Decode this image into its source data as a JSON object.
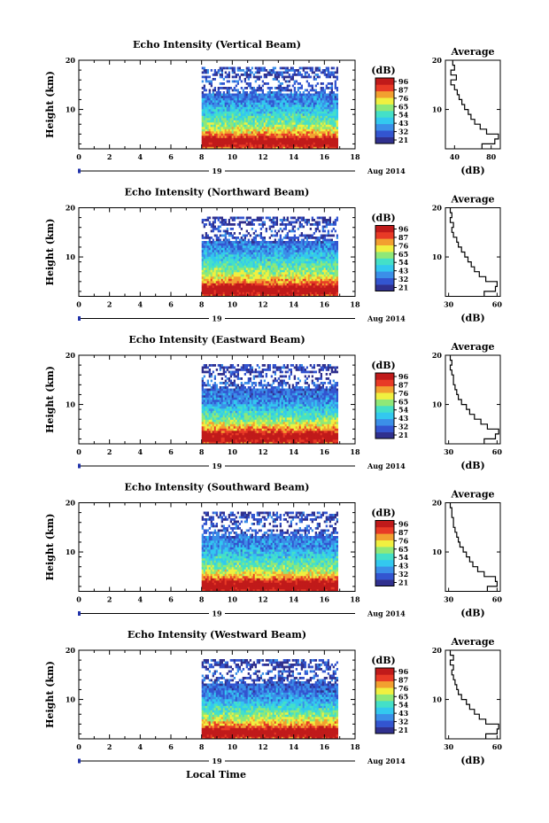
{
  "figure": {
    "xlabel": "Local Time"
  },
  "colorbar": {
    "unit": "(dB)",
    "ticks": [
      "96",
      "87",
      "76",
      "65",
      "54",
      "43",
      "32",
      "21"
    ],
    "range": [
      21,
      96
    ],
    "colors": [
      "#30308e",
      "#3355d0",
      "#3b8fe8",
      "#33c8ef",
      "#44e0c8",
      "#8fe878",
      "#f0f040",
      "#f2a030",
      "#e83a26",
      "#c01a1a"
    ]
  },
  "chart_data": [
    {
      "type": "heatmap",
      "title": "Echo Intensity (Vertical Beam)",
      "ylabel": "Height (km)",
      "xlim": [
        0,
        18
      ],
      "ylim": [
        2,
        20
      ],
      "x_ticks": [
        0,
        2,
        4,
        6,
        8,
        10,
        12,
        14,
        16,
        18
      ],
      "y_ticks": [
        10,
        20
      ],
      "date_label": "19",
      "month_label": "Aug 2014",
      "data_time_range": [
        8,
        16.8
      ],
      "data_top_km": 19,
      "profile": {
        "title": "Average",
        "xlabel": "(dB)",
        "xlim": [
          30,
          90
        ],
        "x_ticks": [
          40,
          80
        ],
        "height_km": [
          2,
          3,
          4,
          5,
          6,
          7,
          8,
          9,
          10,
          11,
          12,
          13,
          14,
          15,
          16,
          17,
          18,
          19
        ],
        "db": [
          70,
          84,
          88,
          75,
          68,
          62,
          58,
          55,
          51,
          48,
          45,
          43,
          40,
          36,
          42,
          36,
          40,
          38
        ]
      }
    },
    {
      "type": "heatmap",
      "title": "Echo Intensity (Northward Beam)",
      "ylabel": "Height (km)",
      "xlim": [
        0,
        18
      ],
      "ylim": [
        2,
        20
      ],
      "x_ticks": [
        0,
        2,
        4,
        6,
        8,
        10,
        12,
        14,
        16,
        18
      ],
      "y_ticks": [
        10,
        20
      ],
      "date_label": "19",
      "month_label": "Aug 2014",
      "data_time_range": [
        8,
        16.8
      ],
      "data_top_km": 18.5,
      "profile": {
        "title": "Average",
        "xlabel": "(dB)",
        "xlim": [
          28,
          62
        ],
        "x_ticks": [
          30,
          60
        ],
        "height_km": [
          2,
          3,
          4,
          5,
          6,
          7,
          8,
          9,
          10,
          11,
          12,
          13,
          14,
          15,
          16,
          17,
          18,
          19
        ],
        "db": [
          52,
          59,
          60,
          53,
          49,
          46,
          44,
          42,
          40,
          38,
          36,
          35,
          33,
          32,
          33,
          31,
          32,
          31
        ]
      }
    },
    {
      "type": "heatmap",
      "title": "Echo Intensity (Eastward Beam)",
      "ylabel": "Height (km)",
      "xlim": [
        0,
        18
      ],
      "ylim": [
        2,
        20
      ],
      "x_ticks": [
        0,
        2,
        4,
        6,
        8,
        10,
        12,
        14,
        16,
        18
      ],
      "y_ticks": [
        10,
        20
      ],
      "date_label": "19",
      "month_label": "Aug 2014",
      "data_time_range": [
        8,
        16.8
      ],
      "data_top_km": 18.5,
      "profile": {
        "title": "Average",
        "xlabel": "(dB)",
        "xlim": [
          28,
          62
        ],
        "x_ticks": [
          30,
          60
        ],
        "height_km": [
          2,
          3,
          4,
          5,
          6,
          7,
          8,
          9,
          10,
          11,
          12,
          13,
          14,
          15,
          16,
          17,
          18,
          19
        ],
        "db": [
          52,
          59,
          61,
          54,
          50,
          46,
          43,
          41,
          38,
          36,
          35,
          34,
          33,
          33,
          32,
          31,
          32,
          31
        ]
      }
    },
    {
      "type": "heatmap",
      "title": "Echo Intensity (Southward Beam)",
      "ylabel": "Height (km)",
      "xlim": [
        0,
        18
      ],
      "ylim": [
        2,
        20
      ],
      "x_ticks": [
        0,
        2,
        4,
        6,
        8,
        10,
        12,
        14,
        16,
        18
      ],
      "y_ticks": [
        10,
        20
      ],
      "date_label": "19",
      "month_label": "Aug 2014",
      "data_time_range": [
        8,
        16.8
      ],
      "data_top_km": 18.5,
      "profile": {
        "title": "Average",
        "xlabel": "(dB)",
        "xlim": [
          28,
          62
        ],
        "x_ticks": [
          30,
          60
        ],
        "height_km": [
          2,
          3,
          4,
          5,
          6,
          7,
          8,
          9,
          10,
          11,
          12,
          13,
          14,
          15,
          16,
          17,
          18,
          19
        ],
        "db": [
          54,
          60,
          59,
          52,
          48,
          45,
          43,
          41,
          39,
          37,
          36,
          35,
          34,
          33,
          33,
          32,
          32,
          31
        ]
      }
    },
    {
      "type": "heatmap",
      "title": "Echo Intensity (Westward Beam)",
      "ylabel": "Height (km)",
      "xlim": [
        0,
        18
      ],
      "ylim": [
        2,
        20
      ],
      "x_ticks": [
        0,
        2,
        4,
        6,
        8,
        10,
        12,
        14,
        16,
        18
      ],
      "y_ticks": [
        10,
        20
      ],
      "date_label": "19",
      "month_label": "Aug 2014",
      "data_time_range": [
        8,
        16.8
      ],
      "data_top_km": 18.5,
      "profile": {
        "title": "Average",
        "xlabel": "(dB)",
        "xlim": [
          28,
          62
        ],
        "x_ticks": [
          30,
          60
        ],
        "height_km": [
          2,
          3,
          4,
          5,
          6,
          7,
          8,
          9,
          10,
          11,
          12,
          13,
          14,
          15,
          16,
          17,
          18,
          19
        ],
        "db": [
          53,
          60,
          61,
          53,
          49,
          46,
          43,
          41,
          38,
          36,
          35,
          34,
          33,
          32,
          33,
          31,
          33,
          31
        ]
      }
    }
  ]
}
